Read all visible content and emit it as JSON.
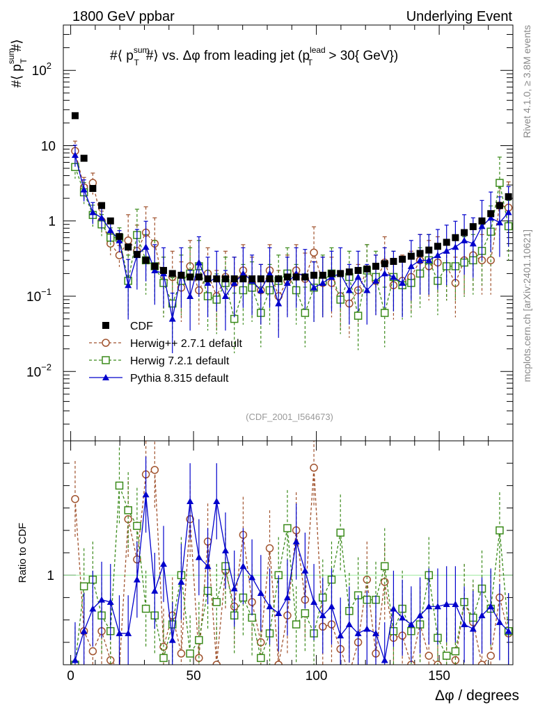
{
  "header": {
    "left": "1800 GeV ppbar",
    "right": "Underlying Event"
  },
  "side": {
    "rivet": "Rivet 4.1.0, ≥ 3.8M events",
    "mcplots": "mcplots.cern.ch [arXiv:2401.10621]"
  },
  "chart_data": {
    "type": "scatter",
    "title": "#⟨ p_T^sum# ⟩ vs. Δφ from leading jet  (p_T^lead > 30{ GeV})",
    "title_parts": {
      "t1": "#⟨ p",
      "t1_sup": "sum",
      "t1_sub": "T",
      "t2": "#⟩ vs. Δφ from leading jet  (p",
      "t2_sup": "lead",
      "t2_sub": "T",
      "t3": " > 30{ GeV})"
    },
    "ylabel_parts": {
      "a": "#⟨ p",
      "sup": "sum",
      "sub": "T",
      "b": "#⟩"
    },
    "ratio_ylabel": "Ratio to CDF",
    "xlabel": "Δφ / degrees",
    "analysis_tag": "(CDF_2001_I564673)",
    "xlim": [
      -3,
      180
    ],
    "ylim_log": [
      0.0012,
      400
    ],
    "ratio_ylim": [
      0.6,
      1.6
    ],
    "x_ticks": [
      0,
      50,
      100,
      150
    ],
    "x_tick_labels": [
      "0",
      "50",
      "100",
      "150"
    ],
    "y_ticks": [
      {
        "v": 100,
        "base": "10",
        "exp": "2"
      },
      {
        "v": 10,
        "base": "10",
        "exp": ""
      },
      {
        "v": 1,
        "base": "1",
        "exp": ""
      },
      {
        "v": 0.1,
        "base": "10",
        "exp": "−1"
      },
      {
        "v": 0.01,
        "base": "10",
        "exp": "−2"
      }
    ],
    "ratio_ticks": [
      {
        "v": 1,
        "label": "1"
      }
    ],
    "x": [
      1.8,
      5.4,
      9,
      12.6,
      16.2,
      19.8,
      23.4,
      27,
      30.6,
      34.2,
      37.8,
      41.4,
      45,
      48.6,
      52.2,
      55.8,
      59.4,
      63,
      66.6,
      70.2,
      73.8,
      77.4,
      81,
      84.6,
      88.2,
      91.8,
      95.4,
      99,
      102.6,
      106.2,
      109.8,
      113.4,
      117,
      120.6,
      124.2,
      127.8,
      131.4,
      135,
      138.6,
      142.2,
      145.8,
      149.4,
      153,
      156.6,
      160.2,
      163.8,
      167.4,
      171,
      174.6,
      178.2
    ],
    "series": [
      {
        "name": "CDF",
        "legend": "CDF",
        "color": "#000000",
        "marker": "square-filled",
        "values": [
          25,
          6.8,
          2.7,
          1.6,
          1.0,
          0.62,
          0.45,
          0.36,
          0.3,
          0.25,
          0.22,
          0.2,
          0.19,
          0.18,
          0.18,
          0.17,
          0.17,
          0.17,
          0.17,
          0.17,
          0.17,
          0.17,
          0.17,
          0.17,
          0.18,
          0.18,
          0.18,
          0.19,
          0.19,
          0.2,
          0.2,
          0.21,
          0.22,
          0.23,
          0.25,
          0.27,
          0.29,
          0.31,
          0.34,
          0.37,
          0.41,
          0.46,
          0.52,
          0.6,
          0.7,
          0.84,
          1.0,
          1.25,
          1.6,
          2.1
        ]
      },
      {
        "name": "Herwig++ 2.7.1 default",
        "legend": "Herwig++ 2.7.1 default",
        "color": "#a0522d",
        "marker": "circle-open",
        "values": [
          8.5,
          2.8,
          3.2,
          1.0,
          0.5,
          0.35,
          0.55,
          0.4,
          0.7,
          0.5,
          0.15,
          0.18,
          0.13,
          0.25,
          0.12,
          0.2,
          0.1,
          0.18,
          0.15,
          0.22,
          0.15,
          0.12,
          0.22,
          0.1,
          0.16,
          0.22,
          0.17,
          0.38,
          0.15,
          0.15,
          0.1,
          0.08,
          0.12,
          0.22,
          0.16,
          0.28,
          0.14,
          0.16,
          0.18,
          0.3,
          0.25,
          0.28,
          0.25,
          0.15,
          0.3,
          0.35,
          0.3,
          0.3,
          1.6,
          1.5
        ],
        "ratio": [
          1.34,
          0.75,
          0.66,
          0.75,
          0.62,
          0.58,
          1.25,
          1.07,
          1.45,
          1.47,
          0.68,
          0.82,
          0.65,
          1.25,
          0.63,
          1.15,
          0.6,
          1.02,
          0.86,
          1.18,
          0.88,
          0.7,
          1.12,
          0.6,
          0.82,
          1.2,
          0.89,
          1.48,
          0.77,
          0.78,
          0.67,
          0.56,
          0.7,
          0.98,
          0.65,
          0.97,
          0.72,
          0.73,
          0.6,
          0.78,
          0.64,
          0.6,
          0.57,
          0.62,
          0.88,
          0.79,
          0.6,
          0.64,
          0.9,
          0.74
        ]
      },
      {
        "name": "Herwig 7.2.1 default",
        "legend": "Herwig 7.2.1 default",
        "color": "#3a8a1a",
        "marker": "square-open",
        "values": [
          5.2,
          2.4,
          1.2,
          0.9,
          0.6,
          0.6,
          0.16,
          0.65,
          0.3,
          0.25,
          0.15,
          0.08,
          0.16,
          0.2,
          0.25,
          0.1,
          0.09,
          0.15,
          0.05,
          0.12,
          0.13,
          0.06,
          0.12,
          0.16,
          0.2,
          0.12,
          0.06,
          0.13,
          0.16,
          0.2,
          0.09,
          0.18,
          0.055,
          0.22,
          0.18,
          0.06,
          0.18,
          0.14,
          0.15,
          0.2,
          0.3,
          0.16,
          0.25,
          0.25,
          0.28,
          0.3,
          0.4,
          0.72,
          3.2,
          0.85
        ],
        "ratio": [
          0.6,
          0.95,
          0.98,
          0.82,
          0.75,
          1.4,
          1.29,
          1.22,
          0.85,
          0.82,
          0.63,
          0.78,
          1.0,
          0.65,
          0.71,
          0.93,
          0.88,
          1.04,
          0.82,
          0.9,
          0.81,
          0.63,
          0.74,
          1.0,
          1.21,
          0.78,
          0.83,
          0.74,
          0.9,
          0.98,
          1.19,
          0.84,
          0.91,
          0.89,
          0.89,
          1.04,
          0.75,
          0.85,
          0.75,
          0.78,
          1.0,
          0.72,
          0.64,
          0.66,
          0.88,
          0.81,
          0.94,
          0.85,
          1.2,
          0.75
        ]
      },
      {
        "name": "Pythia 8.315 default",
        "legend": "Pythia 8.315 default",
        "color": "#0000cc",
        "marker": "triangle-filled",
        "values": [
          7.5,
          2.6,
          1.3,
          1.1,
          0.75,
          0.55,
          0.14,
          0.35,
          0.45,
          0.22,
          0.2,
          0.05,
          0.2,
          0.1,
          0.28,
          0.15,
          0.18,
          0.1,
          0.15,
          0.2,
          0.16,
          0.12,
          0.2,
          0.08,
          0.15,
          0.2,
          0.19,
          0.13,
          0.15,
          0.18,
          0.2,
          0.12,
          0.18,
          0.12,
          0.16,
          0.2,
          0.18,
          0.15,
          0.25,
          0.3,
          0.3,
          0.35,
          0.4,
          0.45,
          0.55,
          0.5,
          0.85,
          1.1,
          0.95,
          1.3
        ],
        "ratio": [
          0.62,
          0.75,
          0.85,
          0.89,
          0.88,
          0.74,
          0.74,
          0.98,
          1.36,
          0.93,
          1.05,
          0.71,
          0.97,
          1.33,
          1.08,
          1.04,
          1.33,
          1.11,
          0.94,
          1.04,
          0.99,
          0.92,
          0.86,
          0.83,
          0.9,
          1.15,
          1.02,
          0.88,
          0.82,
          0.86,
          0.73,
          0.78,
          0.74,
          0.76,
          0.74,
          0.62,
          0.85,
          0.81,
          0.78,
          0.82,
          0.86,
          0.86,
          0.87,
          0.87,
          0.78,
          0.76,
          0.82,
          0.86,
          0.79,
          0.75
        ]
      }
    ]
  }
}
